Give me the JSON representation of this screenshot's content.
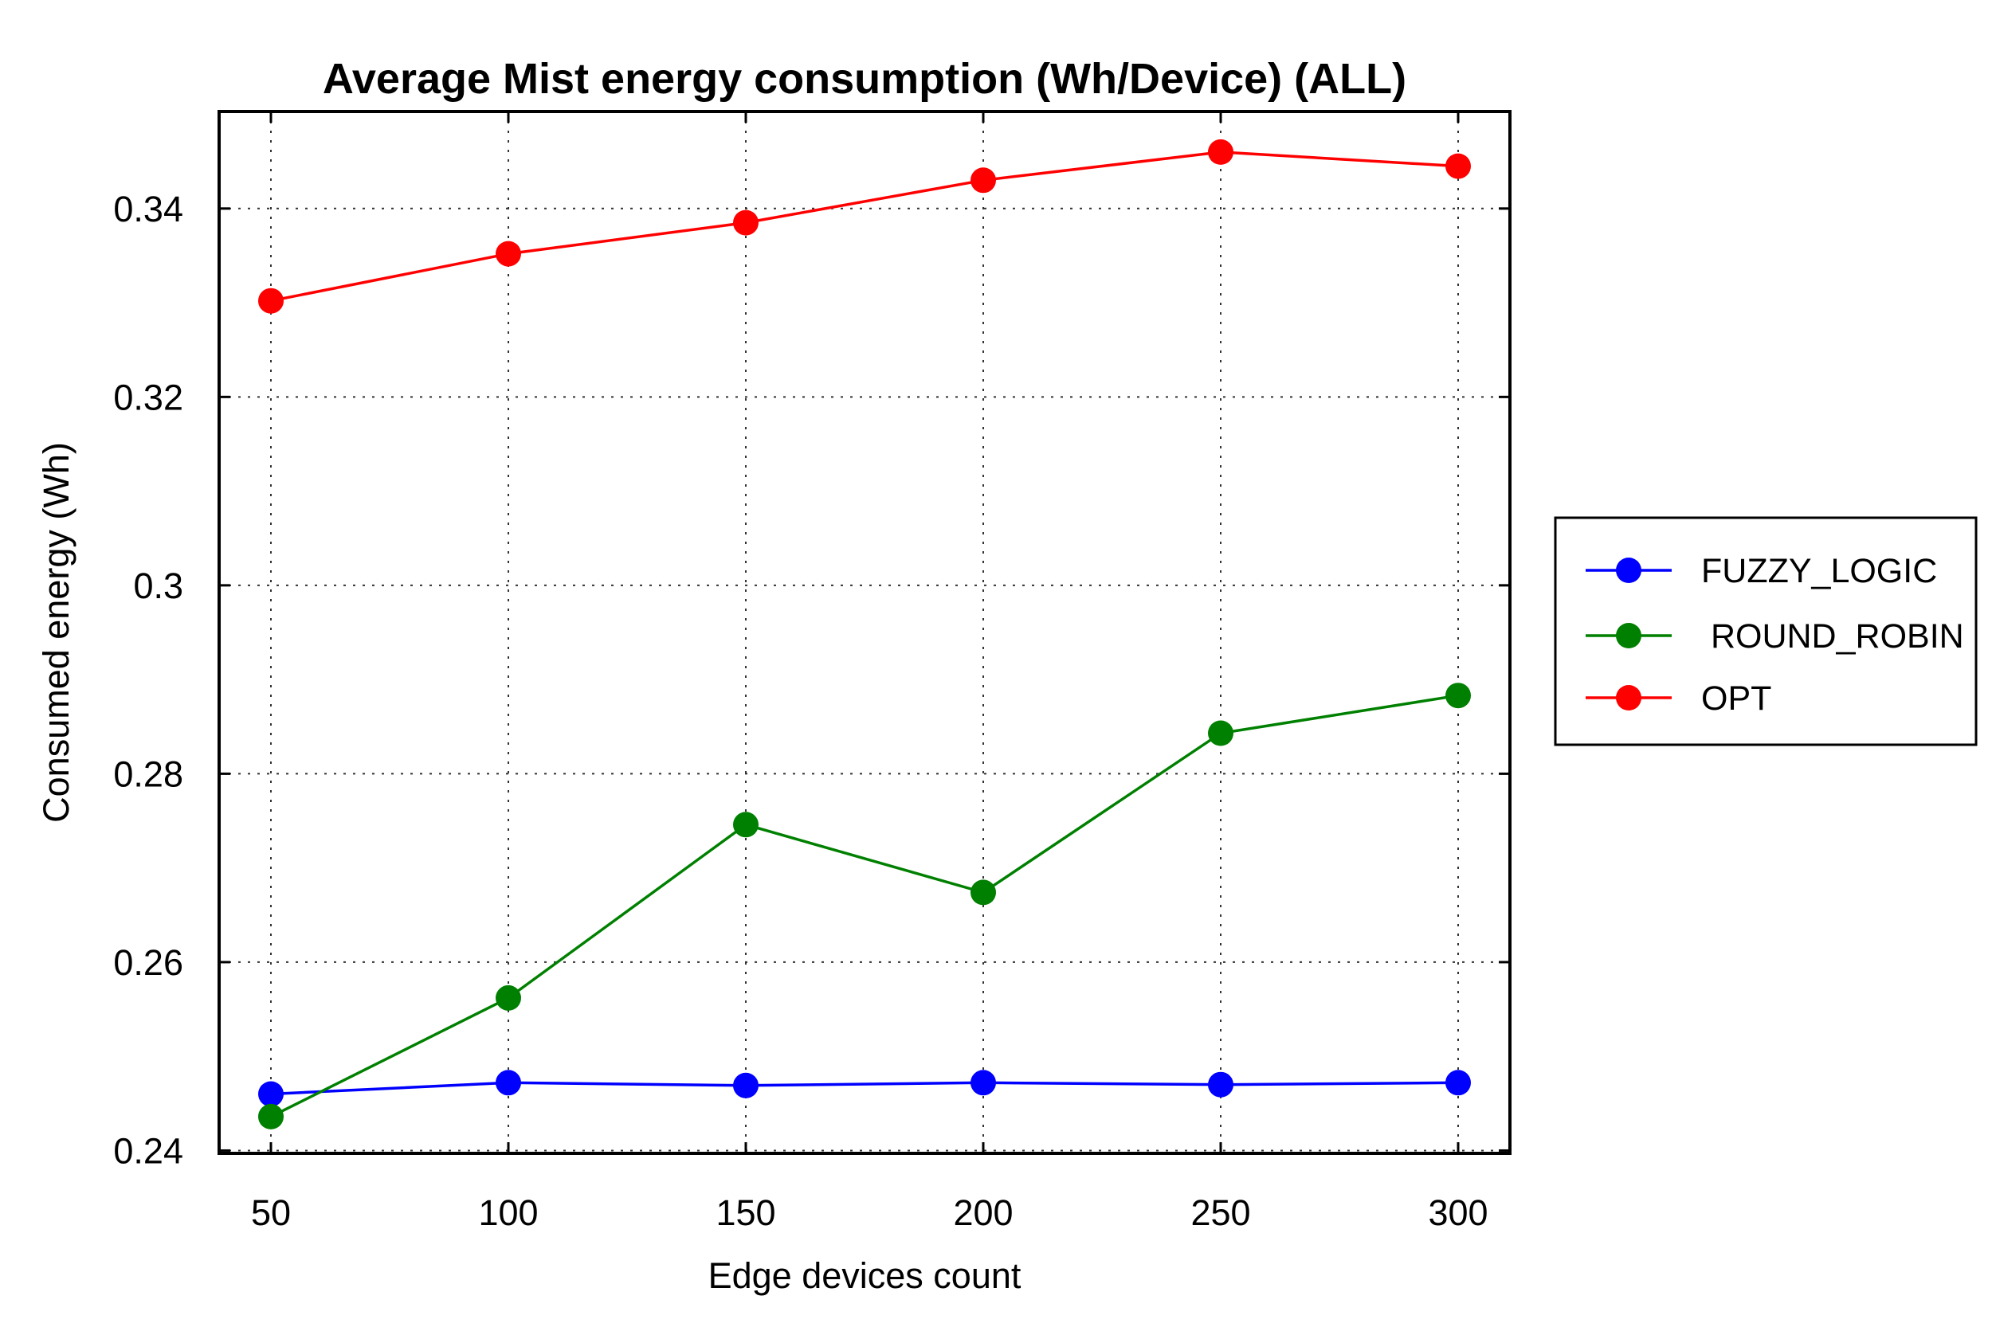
{
  "chart_data": {
    "type": "line",
    "title": "Average Mist energy consumption (Wh/Device) (ALL)",
    "xlabel": "Edge devices count",
    "ylabel": "Consumed energy (Wh)",
    "x": [
      50,
      100,
      150,
      200,
      250,
      300
    ],
    "x_tick_labels": [
      "50",
      "100",
      "150",
      "200",
      "250",
      "300"
    ],
    "y_ticks": [
      0.24,
      0.26,
      0.28,
      0.3,
      0.32,
      0.34
    ],
    "y_tick_labels": [
      "0.24",
      "0.26",
      "0.28",
      "0.3",
      "0.32",
      "0.34"
    ],
    "ylim": [
      0.2397,
      0.3503
    ],
    "grid": true,
    "legend_placement": "outside-right",
    "series": [
      {
        "name": "FUZZY_LOGIC",
        "color": "#0000ff",
        "values": [
          0.246,
          0.2472,
          0.2469,
          0.2472,
          0.247,
          0.2472
        ]
      },
      {
        "name": " ROUND_ROBIN",
        "color": "#008000",
        "values": [
          0.2436,
          0.2562,
          0.2746,
          0.2674,
          0.2843,
          0.2883
        ]
      },
      {
        "name": "OPT",
        "color": "#ff0000",
        "values": [
          0.3302,
          0.3352,
          0.3385,
          0.343,
          0.346,
          0.3445
        ]
      }
    ]
  }
}
